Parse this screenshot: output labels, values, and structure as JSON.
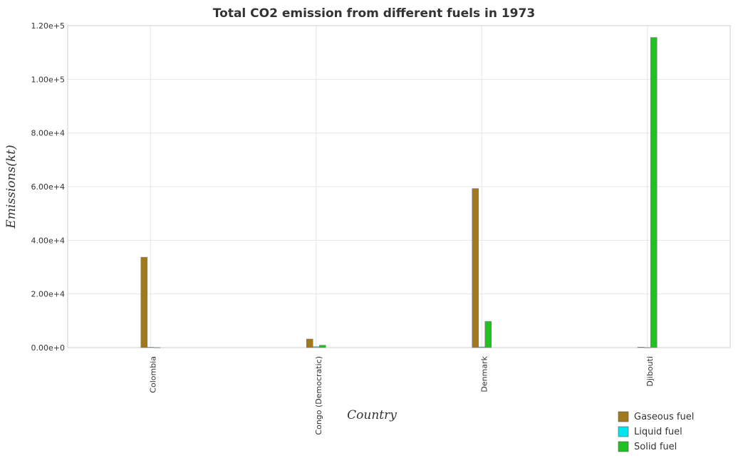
{
  "chart_data": {
    "type": "bar",
    "title": "Total CO2 emission from different fuels in 1973",
    "xlabel": "Country",
    "ylabel": "Emissions(kt)",
    "categories": [
      "Colombia",
      "Congo (Democratic)",
      "Denmark",
      "Djibouti"
    ],
    "ylim": [
      0,
      120000
    ],
    "yticks": [
      0,
      20000,
      40000,
      60000,
      80000,
      100000,
      120000
    ],
    "ytick_labels": [
      "0.00e+0",
      "2.00e+4",
      "4.00e+4",
      "6.00e+4",
      "8.00e+4",
      "1.00e+5",
      "1.20e+5"
    ],
    "grid": true,
    "legend_position": "bottom-right",
    "series": [
      {
        "name": "Gaseous fuel",
        "color": "#a0781e",
        "values": [
          33700,
          3200,
          59300,
          180
        ]
      },
      {
        "name": "Liquid fuel",
        "color": "#00e5ee",
        "values": [
          150,
          360,
          260,
          40
        ]
      },
      {
        "name": "Solid fuel",
        "color": "#22c122",
        "values": [
          40,
          900,
          9800,
          115600
        ]
      }
    ]
  }
}
